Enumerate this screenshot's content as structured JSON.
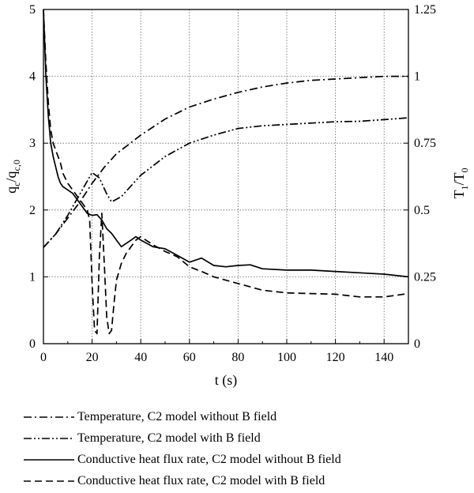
{
  "chart_data": {
    "type": "line",
    "xlabel": "t (s)",
    "ylabel_left": "qc/qc,0",
    "ylabel_right": "T1/T0",
    "xlim": [
      0,
      150
    ],
    "ylim_left": [
      0,
      5
    ],
    "ylim_right": [
      0,
      1.25
    ],
    "x_ticks": [
      "0",
      "20",
      "40",
      "60",
      "80",
      "100",
      "120",
      "140"
    ],
    "y_left_ticks": [
      "0",
      "1",
      "2",
      "3",
      "4",
      "5"
    ],
    "y_right_ticks": [
      "0",
      "0.25",
      "0.5",
      "0.75",
      "1",
      "1.25"
    ],
    "grid": true,
    "series": [
      {
        "name": "Temperature, C2 model without B field",
        "axis": "right",
        "style": "dash-dot",
        "x": [
          0,
          5,
          10,
          15,
          20,
          25,
          30,
          35,
          40,
          50,
          60,
          70,
          80,
          90,
          100,
          110,
          120,
          130,
          140,
          150
        ],
        "y": [
          0.36,
          0.41,
          0.47,
          0.53,
          0.6,
          0.66,
          0.71,
          0.745,
          0.78,
          0.84,
          0.885,
          0.915,
          0.94,
          0.96,
          0.975,
          0.985,
          0.99,
          0.995,
          1.0,
          1.0
        ]
      },
      {
        "name": "Temperature, C2 model with B field",
        "axis": "right",
        "style": "dash-dot-dot",
        "x": [
          0,
          5,
          10,
          15,
          20,
          23,
          26,
          28,
          32,
          36,
          40,
          50,
          60,
          70,
          80,
          90,
          100,
          110,
          120,
          130,
          140,
          150
        ],
        "y": [
          0.36,
          0.41,
          0.48,
          0.56,
          0.64,
          0.62,
          0.56,
          0.53,
          0.55,
          0.59,
          0.63,
          0.7,
          0.75,
          0.78,
          0.805,
          0.815,
          0.82,
          0.825,
          0.83,
          0.832,
          0.838,
          0.845
        ]
      },
      {
        "name": "Conductive heat flux rate, C2 model without B field",
        "axis": "left",
        "style": "solid",
        "x": [
          0,
          1,
          2,
          3,
          4,
          5,
          6,
          7,
          8,
          10,
          12,
          14,
          16,
          18,
          20,
          22,
          24,
          26,
          28,
          30,
          32,
          34,
          36,
          38,
          40,
          45,
          50,
          55,
          60,
          65,
          70,
          75,
          80,
          85,
          90,
          100,
          110,
          120,
          130,
          140,
          150
        ],
        "y": [
          5.0,
          4.0,
          3.4,
          3.0,
          2.8,
          2.65,
          2.5,
          2.4,
          2.35,
          2.3,
          2.25,
          2.15,
          2.05,
          1.95,
          1.92,
          1.93,
          1.85,
          1.72,
          1.65,
          1.55,
          1.45,
          1.5,
          1.55,
          1.6,
          1.55,
          1.45,
          1.42,
          1.32,
          1.22,
          1.28,
          1.17,
          1.15,
          1.17,
          1.18,
          1.12,
          1.1,
          1.1,
          1.08,
          1.06,
          1.04,
          1.0
        ]
      },
      {
        "name": "Conductive heat flux rate, C2 model with B field",
        "axis": "left",
        "style": "dashed",
        "x": [
          0,
          1,
          2,
          3,
          4,
          5,
          6,
          7,
          8,
          10,
          12,
          14,
          16,
          18,
          19,
          20,
          21,
          22,
          23,
          24,
          25,
          26,
          27,
          28,
          29,
          30,
          32,
          34,
          36,
          38,
          40,
          45,
          50,
          55,
          60,
          65,
          70,
          80,
          90,
          100,
          110,
          120,
          130,
          140,
          150
        ],
        "y": [
          5.0,
          4.2,
          3.6,
          3.2,
          3.0,
          2.9,
          2.8,
          2.7,
          2.55,
          2.4,
          2.3,
          2.2,
          2.1,
          2.0,
          1.85,
          0.9,
          0.2,
          0.15,
          1.3,
          1.95,
          1.2,
          0.4,
          0.15,
          0.2,
          0.6,
          0.95,
          1.2,
          1.35,
          1.45,
          1.55,
          1.6,
          1.48,
          1.38,
          1.3,
          1.15,
          1.08,
          1.0,
          0.9,
          0.8,
          0.76,
          0.75,
          0.74,
          0.7,
          0.7,
          0.75
        ]
      }
    ]
  }
}
